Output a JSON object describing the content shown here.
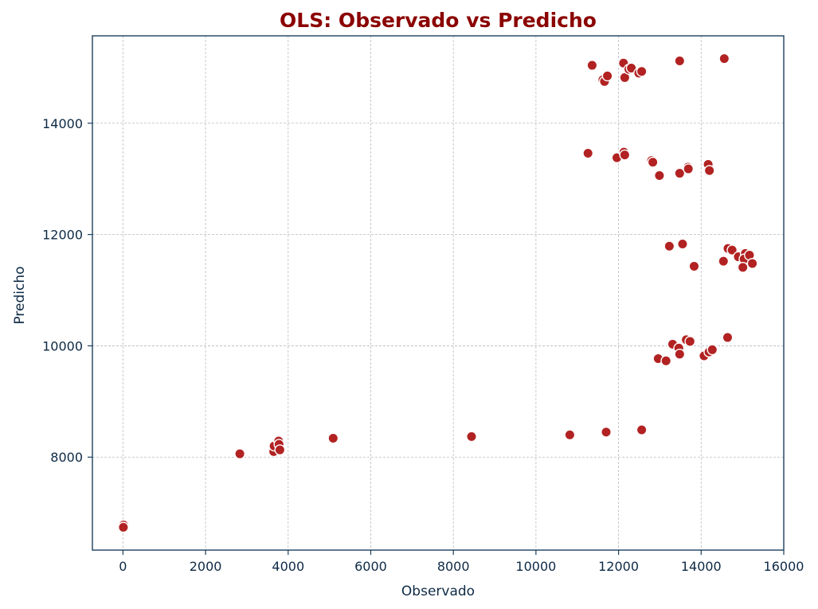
{
  "chart_data": {
    "type": "scatter",
    "title": "OLS: Observado vs Predicho",
    "xlabel": "Observado",
    "ylabel": "Predicho",
    "xlim": [
      -740,
      16000
    ],
    "ylim": [
      6330,
      15570
    ],
    "xticks": [
      0,
      2000,
      4000,
      6000,
      8000,
      10000,
      12000,
      14000,
      16000
    ],
    "yticks": [
      8000,
      10000,
      12000,
      14000
    ],
    "grid": true,
    "colors": {
      "title": "#8b0000",
      "axis": "#1c3f5c",
      "text": "#0d2a45",
      "point": "#b22222",
      "point_edge": "#ffffff",
      "grid": "#b8bcc0"
    },
    "points": [
      [
        15,
        6780
      ],
      [
        10,
        6740
      ],
      [
        2830,
        8060
      ],
      [
        3650,
        8100
      ],
      [
        3660,
        8200
      ],
      [
        3770,
        8290
      ],
      [
        3780,
        8230
      ],
      [
        3800,
        8130
      ],
      [
        5090,
        8340
      ],
      [
        8440,
        8370
      ],
      [
        10820,
        8400
      ],
      [
        11700,
        8450
      ],
      [
        12560,
        8490
      ],
      [
        11360,
        15040
      ],
      [
        11620,
        14780
      ],
      [
        11660,
        14750
      ],
      [
        11730,
        14850
      ],
      [
        12120,
        15080
      ],
      [
        12150,
        14820
      ],
      [
        12250,
        14970
      ],
      [
        12310,
        14990
      ],
      [
        12490,
        14900
      ],
      [
        12560,
        14930
      ],
      [
        13480,
        15120
      ],
      [
        14560,
        15160
      ],
      [
        11260,
        13460
      ],
      [
        11960,
        13380
      ],
      [
        12130,
        13480
      ],
      [
        12150,
        13430
      ],
      [
        12800,
        13330
      ],
      [
        12830,
        13300
      ],
      [
        12990,
        13060
      ],
      [
        13480,
        13100
      ],
      [
        13680,
        13210
      ],
      [
        13690,
        13180
      ],
      [
        14170,
        13260
      ],
      [
        14200,
        13150
      ],
      [
        13230,
        11790
      ],
      [
        13550,
        11830
      ],
      [
        13830,
        11430
      ],
      [
        14540,
        11520
      ],
      [
        14650,
        11750
      ],
      [
        14750,
        11720
      ],
      [
        14900,
        11600
      ],
      [
        15070,
        11660
      ],
      [
        15040,
        11560
      ],
      [
        15170,
        11630
      ],
      [
        15010,
        11410
      ],
      [
        15240,
        11480
      ],
      [
        12960,
        9770
      ],
      [
        13150,
        9730
      ],
      [
        13310,
        10030
      ],
      [
        13460,
        9960
      ],
      [
        13480,
        9850
      ],
      [
        13640,
        10110
      ],
      [
        13730,
        10080
      ],
      [
        14070,
        9820
      ],
      [
        14190,
        9890
      ],
      [
        14270,
        9930
      ],
      [
        14640,
        10150
      ]
    ]
  }
}
